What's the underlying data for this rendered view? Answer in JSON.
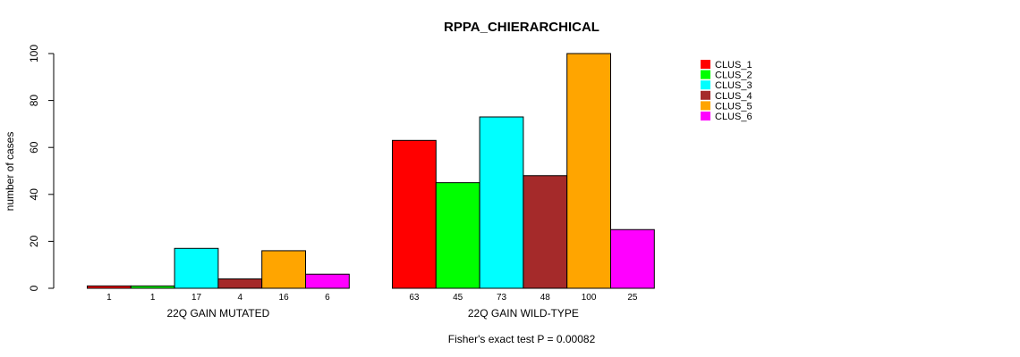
{
  "chart_data": {
    "type": "bar",
    "title": "RPPA_CHIERARCHICAL",
    "xlabel": "",
    "ylabel": "number of cases",
    "ylim": [
      0,
      100
    ],
    "yticks": [
      0,
      20,
      40,
      60,
      80,
      100
    ],
    "groups": [
      "22Q GAIN MUTATED",
      "22Q GAIN WILD-TYPE"
    ],
    "series": [
      {
        "name": "CLUS_1",
        "color": "#ff0000",
        "values": [
          1,
          63
        ]
      },
      {
        "name": "CLUS_2",
        "color": "#00ff00",
        "values": [
          1,
          45
        ]
      },
      {
        "name": "CLUS_3",
        "color": "#00ffff",
        "values": [
          17,
          73
        ]
      },
      {
        "name": "CLUS_4",
        "color": "#a52a2a",
        "values": [
          4,
          48
        ]
      },
      {
        "name": "CLUS_5",
        "color": "#ffa500",
        "values": [
          16,
          100
        ]
      },
      {
        "name": "CLUS_6",
        "color": "#ff00ff",
        "values": [
          6,
          25
        ]
      }
    ],
    "legend_position": "top-right",
    "footnote": "Fisher's exact test P = 0.00082"
  }
}
